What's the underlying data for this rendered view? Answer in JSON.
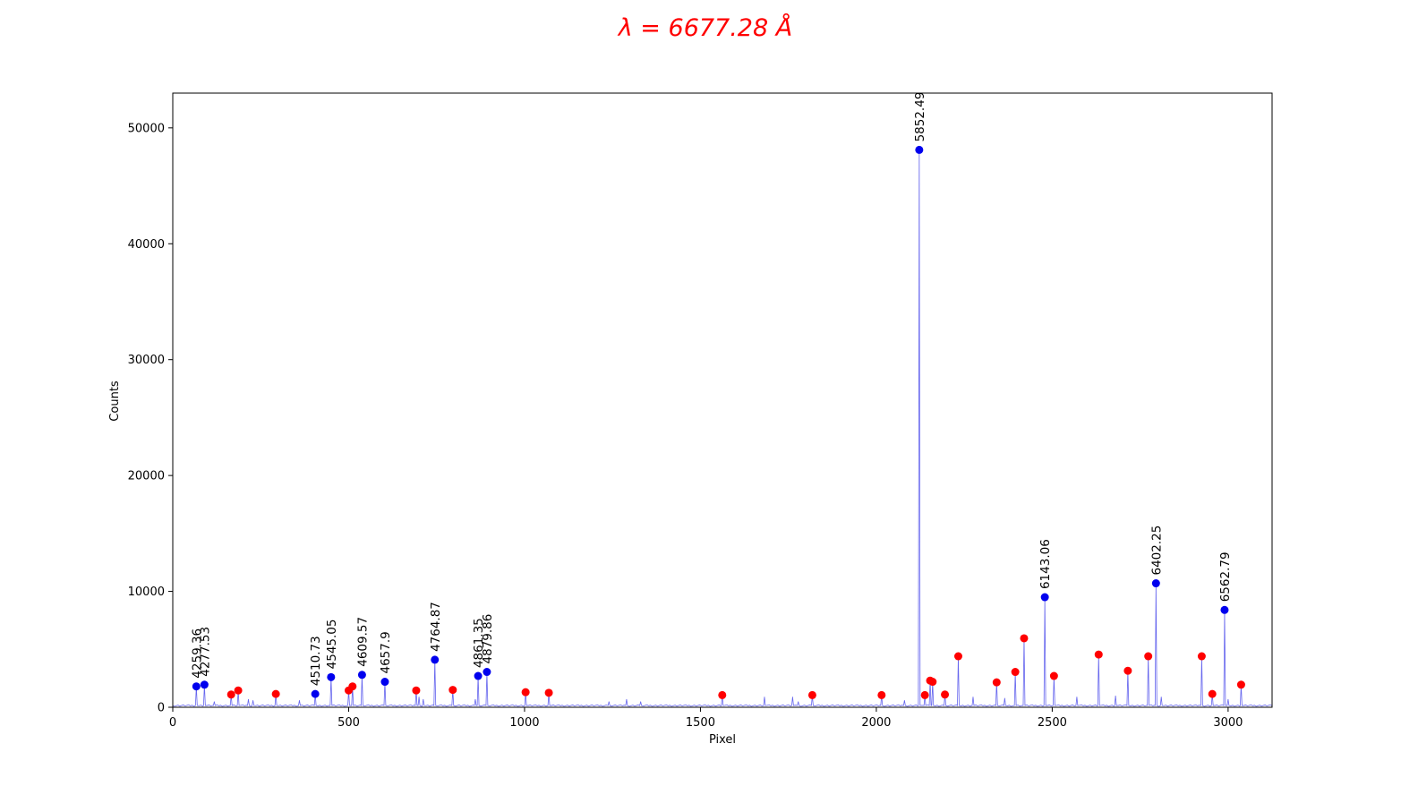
{
  "chart_data": {
    "type": "line",
    "title": "λ = 6677.28 Å",
    "title_color": "#ff0000",
    "xlabel": "Pixel",
    "ylabel": "Counts",
    "xlim": [
      0,
      3125
    ],
    "ylim": [
      0,
      53000
    ],
    "xticks": [
      0,
      500,
      1000,
      1500,
      2000,
      2500,
      3000
    ],
    "yticks": [
      0,
      10000,
      20000,
      30000,
      40000,
      50000
    ],
    "spectrum_color": "#6666ee",
    "matched_color": "#0000ee",
    "unmatched_color": "#ff0000",
    "baseline": 150,
    "matched_peaks": [
      {
        "x": 67,
        "y": 1800,
        "label": "4259.36"
      },
      {
        "x": 90,
        "y": 1950,
        "label": "4277.53"
      },
      {
        "x": 405,
        "y": 1150,
        "label": "4510.73"
      },
      {
        "x": 450,
        "y": 2600,
        "label": "4545.05"
      },
      {
        "x": 538,
        "y": 2800,
        "label": "4609.57"
      },
      {
        "x": 603,
        "y": 2200,
        "label": "4657.9"
      },
      {
        "x": 745,
        "y": 4100,
        "label": "4764.87"
      },
      {
        "x": 868,
        "y": 2700,
        "label": "4861.35"
      },
      {
        "x": 893,
        "y": 3050,
        "label": "4879.86"
      },
      {
        "x": 2122,
        "y": 48100,
        "label": "5852.49"
      },
      {
        "x": 2479,
        "y": 9500,
        "label": "6143.06"
      },
      {
        "x": 2795,
        "y": 10700,
        "label": "6402.25"
      },
      {
        "x": 2990,
        "y": 8400,
        "label": "6562.79"
      }
    ],
    "unmatched_peaks": [
      {
        "x": 166,
        "y": 1100
      },
      {
        "x": 186,
        "y": 1450
      },
      {
        "x": 293,
        "y": 1150
      },
      {
        "x": 500,
        "y": 1450
      },
      {
        "x": 511,
        "y": 1800
      },
      {
        "x": 692,
        "y": 1450
      },
      {
        "x": 796,
        "y": 1500
      },
      {
        "x": 1003,
        "y": 1300
      },
      {
        "x": 1069,
        "y": 1250
      },
      {
        "x": 1562,
        "y": 1050
      },
      {
        "x": 1818,
        "y": 1050
      },
      {
        "x": 2015,
        "y": 1050
      },
      {
        "x": 2138,
        "y": 1050
      },
      {
        "x": 2153,
        "y": 2300
      },
      {
        "x": 2160,
        "y": 2200
      },
      {
        "x": 2195,
        "y": 1100
      },
      {
        "x": 2233,
        "y": 4400
      },
      {
        "x": 2342,
        "y": 2150
      },
      {
        "x": 2395,
        "y": 3050
      },
      {
        "x": 2420,
        "y": 5950
      },
      {
        "x": 2505,
        "y": 2700
      },
      {
        "x": 2632,
        "y": 4550
      },
      {
        "x": 2715,
        "y": 3150
      },
      {
        "x": 2773,
        "y": 4400
      },
      {
        "x": 2925,
        "y": 4400
      },
      {
        "x": 2955,
        "y": 1150
      },
      {
        "x": 3037,
        "y": 1950
      }
    ],
    "minor_lines": [
      {
        "x": 118,
        "y": 500
      },
      {
        "x": 215,
        "y": 700
      },
      {
        "x": 228,
        "y": 600
      },
      {
        "x": 360,
        "y": 600
      },
      {
        "x": 700,
        "y": 900
      },
      {
        "x": 712,
        "y": 700
      },
      {
        "x": 860,
        "y": 700
      },
      {
        "x": 1240,
        "y": 500
      },
      {
        "x": 1290,
        "y": 700
      },
      {
        "x": 1330,
        "y": 500
      },
      {
        "x": 1682,
        "y": 900
      },
      {
        "x": 1762,
        "y": 900
      },
      {
        "x": 1778,
        "y": 500
      },
      {
        "x": 2080,
        "y": 600
      },
      {
        "x": 2275,
        "y": 900
      },
      {
        "x": 2365,
        "y": 800
      },
      {
        "x": 2570,
        "y": 900
      },
      {
        "x": 2680,
        "y": 1000
      },
      {
        "x": 2810,
        "y": 900
      },
      {
        "x": 3000,
        "y": 700
      }
    ]
  }
}
